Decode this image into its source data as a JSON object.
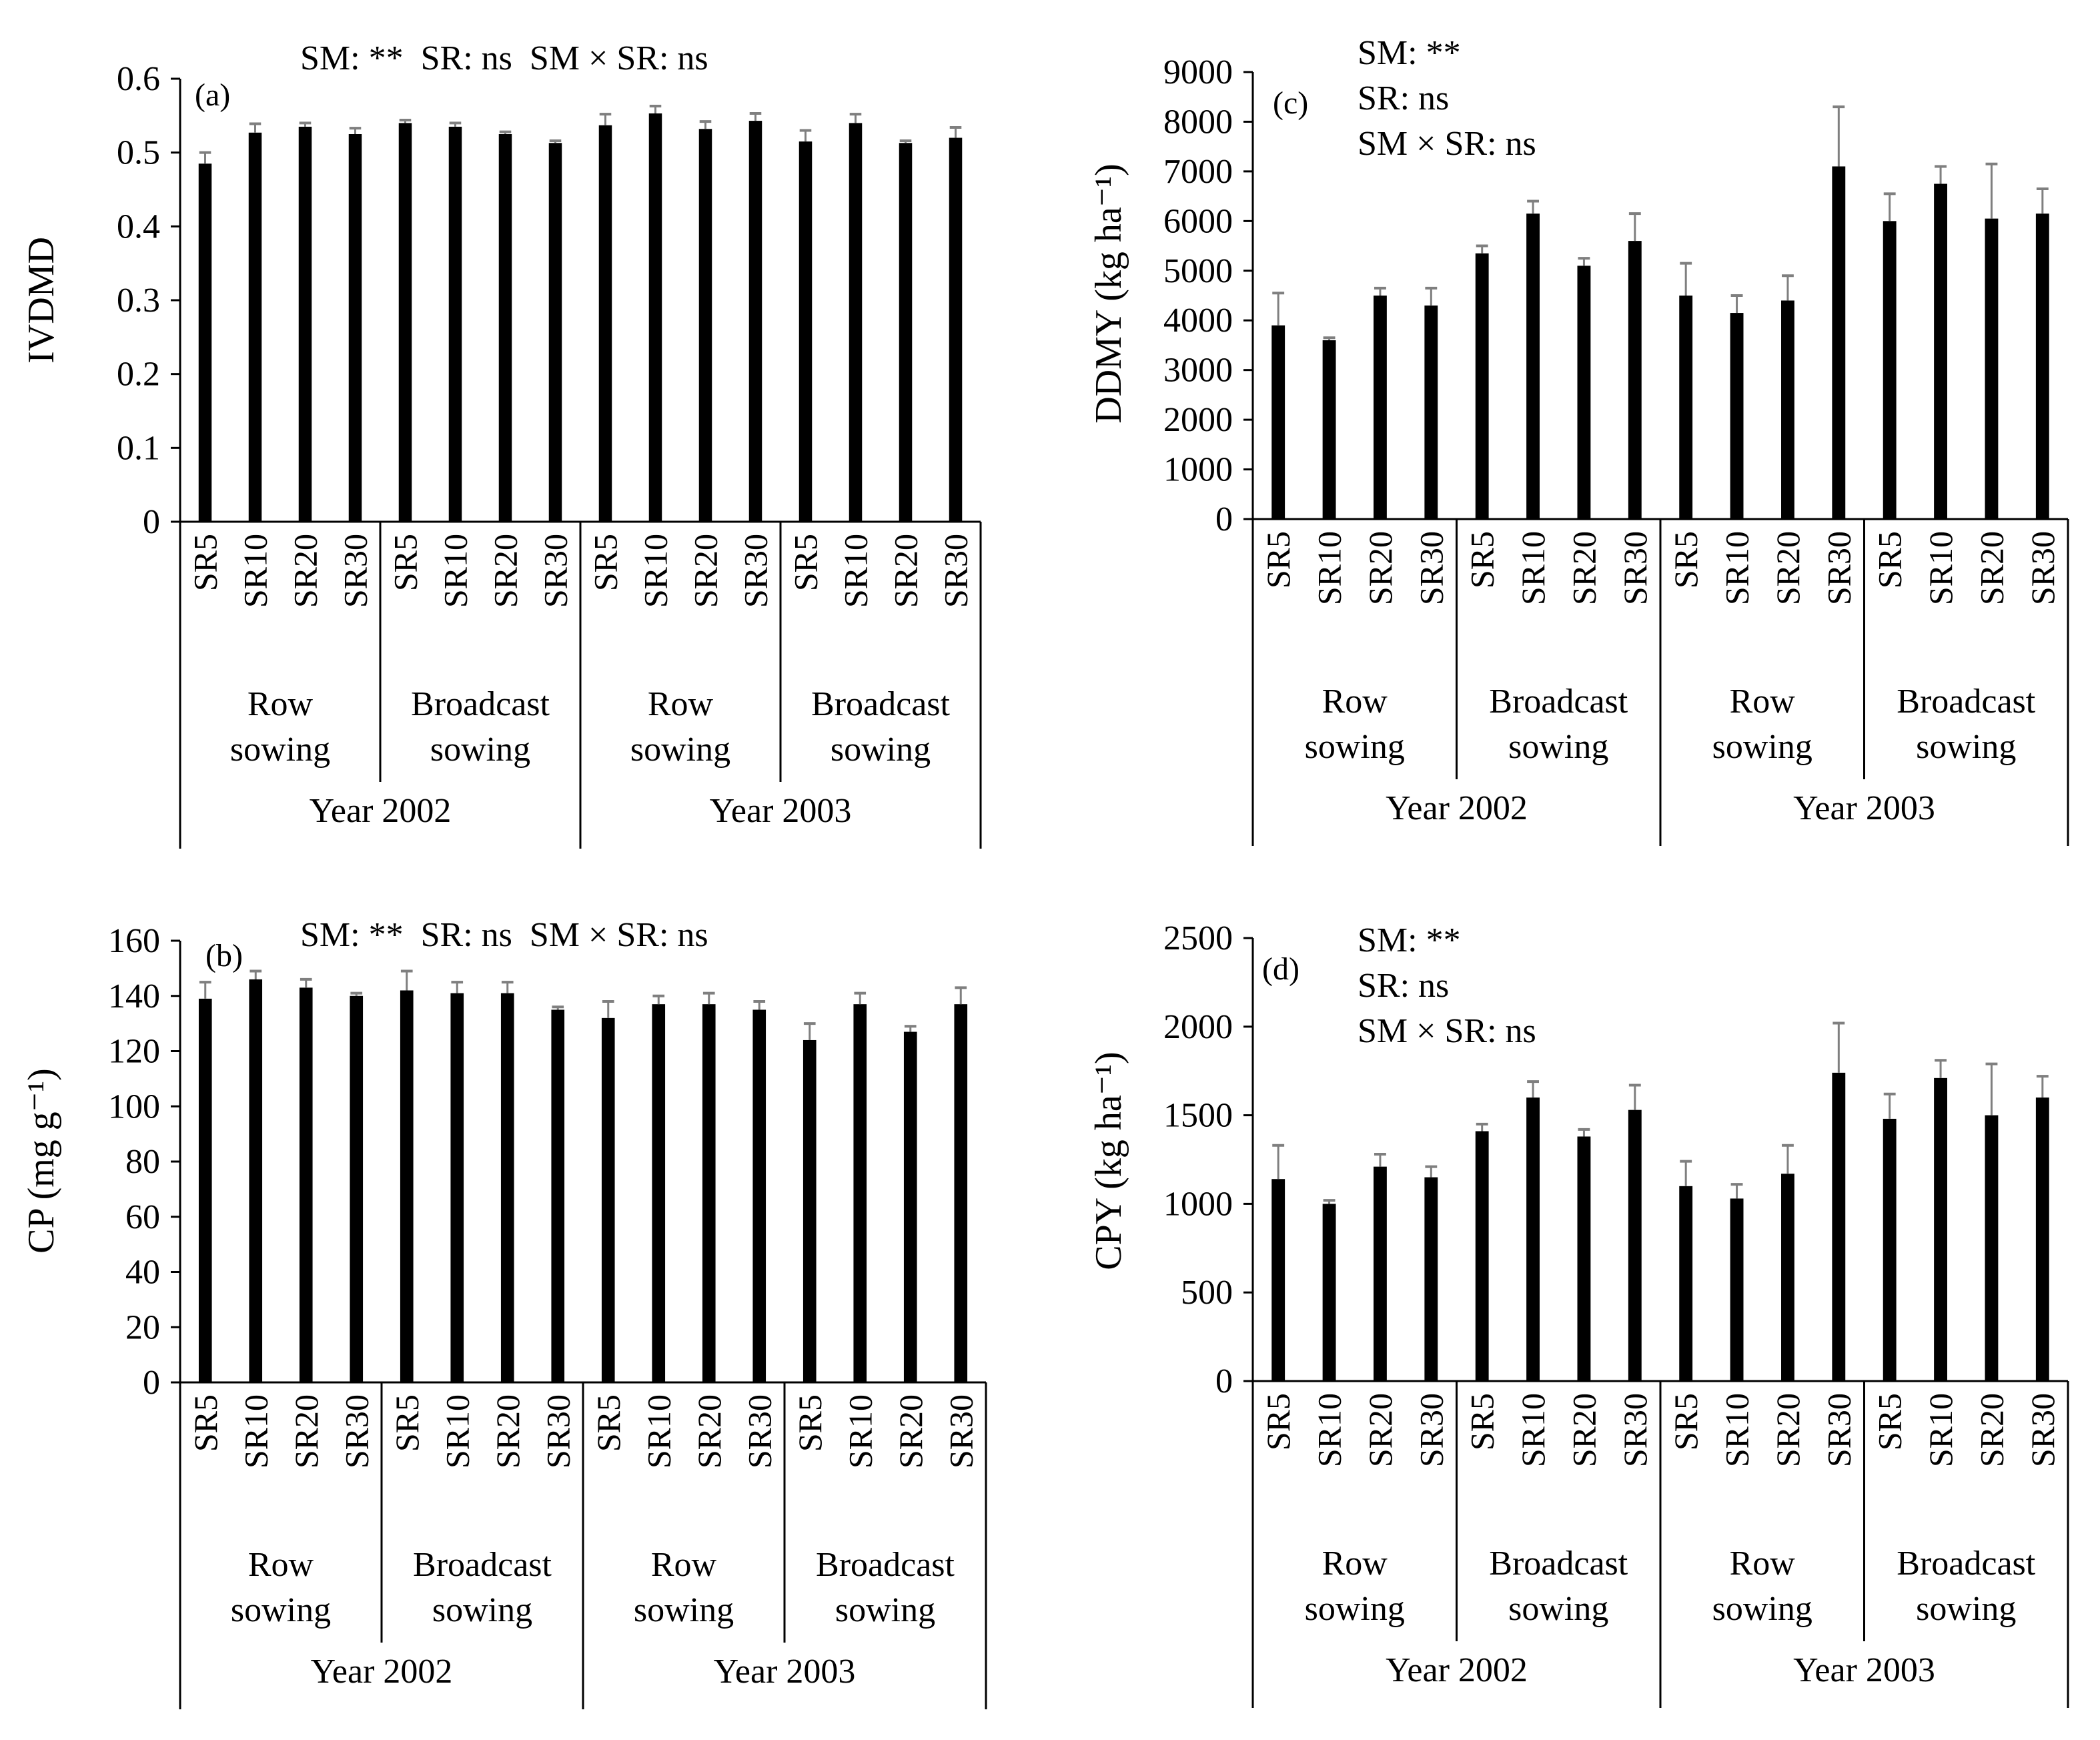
{
  "colors": {
    "bar": "#000000",
    "error_bar": "#7f7f7f",
    "axis": "#000000"
  },
  "chart_data": [
    {
      "id": "a",
      "type": "bar",
      "panel_label": "(a)",
      "ylabel": "IVDMD",
      "ylim": [
        0,
        0.6
      ],
      "yticks": [
        "0",
        "0.1",
        "0.2",
        "0.3",
        "0.4",
        "0.5",
        "0.6"
      ],
      "categories": [
        "SR5",
        "SR10",
        "SR20",
        "SR30",
        "SR5",
        "SR10",
        "SR20",
        "SR30",
        "SR5",
        "SR10",
        "SR20",
        "SR30",
        "SR5",
        "SR10",
        "SR20",
        "SR30"
      ],
      "method_groups": [
        [
          "Row",
          "sowing"
        ],
        [
          "Broadcast",
          "sowing"
        ],
        [
          "Row",
          "sowing"
        ],
        [
          "Broadcast",
          "sowing"
        ]
      ],
      "year_groups": [
        "Year 2002",
        "Year 2003"
      ],
      "annotations": [
        "SM: **  SR: ns  SM × SR: ns"
      ],
      "annotation_layout": "inline",
      "values": [
        0.485,
        0.527,
        0.535,
        0.525,
        0.54,
        0.535,
        0.525,
        0.513,
        0.537,
        0.553,
        0.532,
        0.543,
        0.515,
        0.54,
        0.513,
        0.52
      ],
      "errors": [
        0.015,
        0.012,
        0.005,
        0.008,
        0.004,
        0.005,
        0.003,
        0.003,
        0.015,
        0.01,
        0.01,
        0.01,
        0.015,
        0.012,
        0.003,
        0.014
      ]
    },
    {
      "id": "b",
      "type": "bar",
      "panel_label": "(b)",
      "ylabel": "CP (mg g⁻¹)",
      "ylim": [
        0,
        160
      ],
      "yticks": [
        "0",
        "20",
        "40",
        "60",
        "80",
        "100",
        "120",
        "140",
        "160"
      ],
      "categories": [
        "SR5",
        "SR10",
        "SR20",
        "SR30",
        "SR5",
        "SR10",
        "SR20",
        "SR30",
        "SR5",
        "SR10",
        "SR20",
        "SR30",
        "SR5",
        "SR10",
        "SR20",
        "SR30"
      ],
      "method_groups": [
        [
          "Row",
          "sowing"
        ],
        [
          "Broadcast",
          "sowing"
        ],
        [
          "Row",
          "sowing"
        ],
        [
          "Broadcast",
          "sowing"
        ]
      ],
      "year_groups": [
        "Year 2002",
        "Year 2003"
      ],
      "annotations": [
        "SM: **  SR: ns  SM × SR: ns"
      ],
      "annotation_layout": "inline",
      "values": [
        139,
        146,
        143,
        140,
        142,
        141,
        141,
        135,
        132,
        137,
        137,
        135,
        124,
        137,
        127,
        137
      ],
      "errors": [
        6,
        3,
        3,
        1,
        7,
        4,
        4,
        1,
        6,
        3,
        4,
        3,
        6,
        4,
        2,
        6
      ]
    },
    {
      "id": "c",
      "type": "bar",
      "panel_label": "(c)",
      "ylabel": "DDMY (kg ha⁻¹)",
      "ylim": [
        0,
        9000
      ],
      "yticks": [
        "0",
        "1000",
        "2000",
        "3000",
        "4000",
        "5000",
        "6000",
        "7000",
        "8000",
        "9000"
      ],
      "categories": [
        "SR5",
        "SR10",
        "SR20",
        "SR30",
        "SR5",
        "SR10",
        "SR20",
        "SR30",
        "SR5",
        "SR10",
        "SR20",
        "SR30",
        "SR5",
        "SR10",
        "SR20",
        "SR30"
      ],
      "method_groups": [
        [
          "Row",
          "sowing"
        ],
        [
          "Broadcast",
          "sowing"
        ],
        [
          "Row",
          "sowing"
        ],
        [
          "Broadcast",
          "sowing"
        ]
      ],
      "year_groups": [
        "Year 2002",
        "Year 2003"
      ],
      "annotations": [
        "SM: **",
        "SR: ns",
        "SM × SR: ns"
      ],
      "annotation_layout": "stacked",
      "values": [
        3900,
        3600,
        4500,
        4300,
        5350,
        6150,
        5100,
        5600,
        4500,
        4150,
        4400,
        7100,
        6000,
        6750,
        6050,
        6150
      ],
      "errors": [
        650,
        50,
        150,
        350,
        150,
        250,
        150,
        550,
        650,
        350,
        500,
        1200,
        550,
        350,
        1100,
        500
      ]
    },
    {
      "id": "d",
      "type": "bar",
      "panel_label": "(d)",
      "ylabel": "CPY (kg ha⁻¹)",
      "ylim": [
        0,
        2500
      ],
      "yticks": [
        "0",
        "500",
        "1000",
        "1500",
        "2000",
        "2500"
      ],
      "categories": [
        "SR5",
        "SR10",
        "SR20",
        "SR30",
        "SR5",
        "SR10",
        "SR20",
        "SR30",
        "SR5",
        "SR10",
        "SR20",
        "SR30",
        "SR5",
        "SR10",
        "SR20",
        "SR30"
      ],
      "method_groups": [
        [
          "Row",
          "sowing"
        ],
        [
          "Broadcast",
          "sowing"
        ],
        [
          "Row",
          "sowing"
        ],
        [
          "Broadcast",
          "sowing"
        ]
      ],
      "year_groups": [
        "Year 2002",
        "Year 2003"
      ],
      "annotations": [
        "SM: **",
        "SR: ns",
        "SM × SR: ns"
      ],
      "annotation_layout": "stacked",
      "values": [
        1140,
        1000,
        1210,
        1150,
        1410,
        1600,
        1380,
        1530,
        1100,
        1030,
        1170,
        1740,
        1480,
        1710,
        1500,
        1600
      ],
      "errors": [
        190,
        20,
        70,
        60,
        40,
        90,
        40,
        140,
        140,
        80,
        160,
        280,
        140,
        100,
        290,
        120
      ]
    }
  ]
}
